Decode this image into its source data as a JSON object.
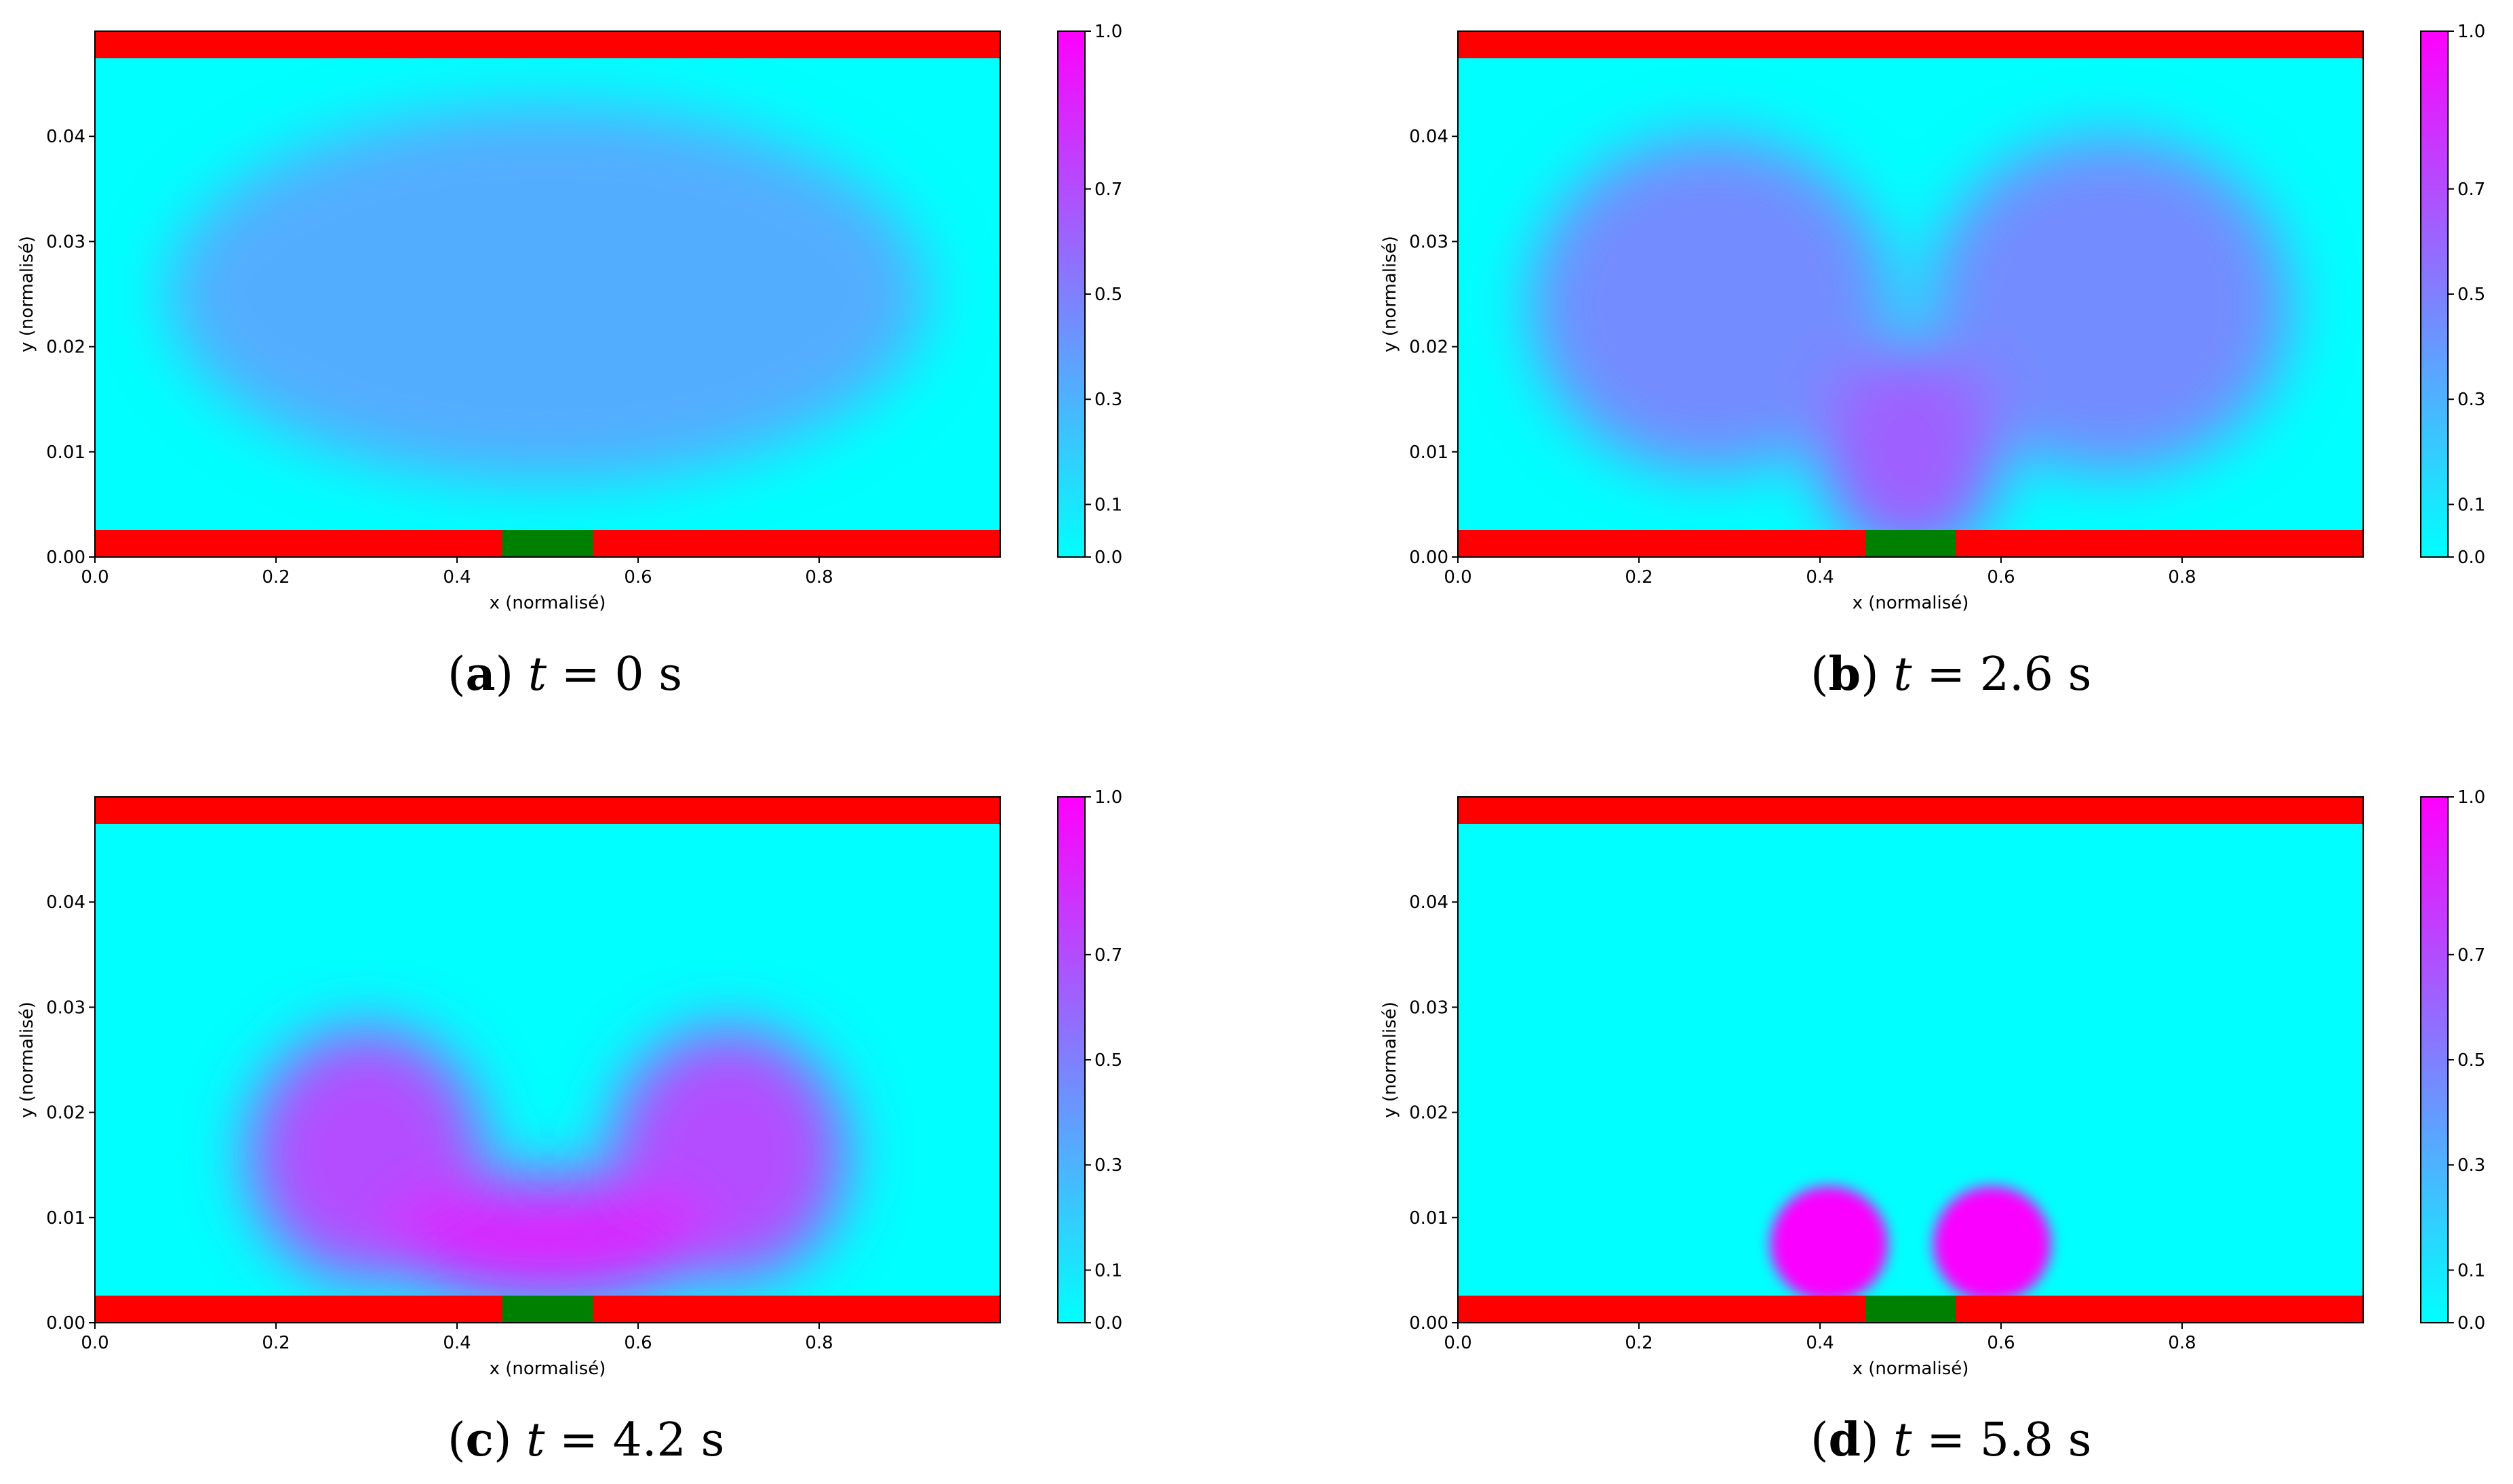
{
  "chart_data": [
    {
      "type": "heatmap",
      "xlabel": "x (normalisé)",
      "ylabel": "y (normalisé)",
      "xlim": [
        0.0,
        1.0
      ],
      "ylim": [
        0.0,
        0.05
      ],
      "xticks": [
        "0.0",
        "0.2",
        "0.4",
        "0.6",
        "0.8"
      ],
      "yticks": [
        "0.00",
        "0.01",
        "0.02",
        "0.03",
        "0.04"
      ],
      "colorbar": {
        "ticks": [
          "0.0",
          "0.1",
          "0.3",
          "0.5",
          "0.7",
          "1.0"
        ],
        "range": [
          0.0,
          1.0
        ]
      },
      "caption": {
        "letter": "a",
        "var": "t",
        "eq": "=",
        "value": "0",
        "unit": "s"
      },
      "field": [
        {
          "x": 0.5,
          "y": 0.025,
          "rx": 0.42,
          "ry": 0.018,
          "value": 0.32
        }
      ]
    },
    {
      "type": "heatmap",
      "xlabel": "x (normalisé)",
      "ylabel": "y (normalisé)",
      "xlim": [
        0.0,
        1.0
      ],
      "ylim": [
        0.0,
        0.05
      ],
      "xticks": [
        "0.0",
        "0.2",
        "0.4",
        "0.6",
        "0.8"
      ],
      "yticks": [
        "0.00",
        "0.01",
        "0.02",
        "0.03",
        "0.04"
      ],
      "colorbar": {
        "ticks": [
          "0.0",
          "0.1",
          "0.3",
          "0.5",
          "0.7",
          "1.0"
        ],
        "range": [
          0.0,
          1.0
        ]
      },
      "caption": {
        "letter": "b",
        "var": "t",
        "eq": "=",
        "value": "2.6",
        "unit": "s"
      },
      "field": [
        {
          "x": 0.28,
          "y": 0.024,
          "rx": 0.2,
          "ry": 0.016,
          "value": 0.45
        },
        {
          "x": 0.72,
          "y": 0.024,
          "rx": 0.2,
          "ry": 0.016,
          "value": 0.45
        },
        {
          "x": 0.5,
          "y": 0.01,
          "rx": 0.1,
          "ry": 0.01,
          "value": 0.62
        }
      ]
    },
    {
      "type": "heatmap",
      "xlabel": "x (normalisé)",
      "ylabel": "y (normalisé)",
      "xlim": [
        0.0,
        1.0
      ],
      "ylim": [
        0.0,
        0.05
      ],
      "xticks": [
        "0.0",
        "0.2",
        "0.4",
        "0.6",
        "0.8"
      ],
      "yticks": [
        "0.00",
        "0.01",
        "0.02",
        "0.03",
        "0.04"
      ],
      "colorbar": {
        "ticks": [
          "0.0",
          "0.1",
          "0.3",
          "0.5",
          "0.7",
          "1.0"
        ],
        "range": [
          0.0,
          1.0
        ]
      },
      "caption": {
        "letter": "c",
        "var": "t",
        "eq": "=",
        "value": "4.2",
        "unit": "s"
      },
      "field": [
        {
          "x": 0.3,
          "y": 0.016,
          "rx": 0.13,
          "ry": 0.012,
          "value": 0.7
        },
        {
          "x": 0.7,
          "y": 0.016,
          "rx": 0.13,
          "ry": 0.012,
          "value": 0.7
        },
        {
          "x": 0.5,
          "y": 0.008,
          "rx": 0.18,
          "ry": 0.006,
          "value": 0.85
        }
      ]
    },
    {
      "type": "heatmap",
      "xlabel": "x (normalisé)",
      "ylabel": "y (normalisé)",
      "xlim": [
        0.0,
        1.0
      ],
      "ylim": [
        0.0,
        0.05
      ],
      "xticks": [
        "0.0",
        "0.2",
        "0.4",
        "0.6",
        "0.8"
      ],
      "yticks": [
        "0.00",
        "0.01",
        "0.02",
        "0.03",
        "0.04"
      ],
      "colorbar": {
        "ticks": [
          "0.0",
          "0.1",
          "0.3",
          "0.5",
          "0.7",
          "1.0"
        ],
        "range": [
          0.0,
          1.0
        ]
      },
      "caption": {
        "letter": "d",
        "var": "t",
        "eq": "=",
        "value": "5.8",
        "unit": "s"
      },
      "field": [
        {
          "x": 0.41,
          "y": 0.0075,
          "rx": 0.065,
          "ry": 0.0055,
          "value": 0.98
        },
        {
          "x": 0.59,
          "y": 0.0075,
          "rx": 0.065,
          "ry": 0.0055,
          "value": 0.98
        }
      ]
    }
  ],
  "colors": {
    "wall": "#ff0000",
    "outlet": "#008000",
    "background_field": "#00ffff",
    "colormap": [
      "#00ffff",
      "#ff00ff"
    ]
  }
}
